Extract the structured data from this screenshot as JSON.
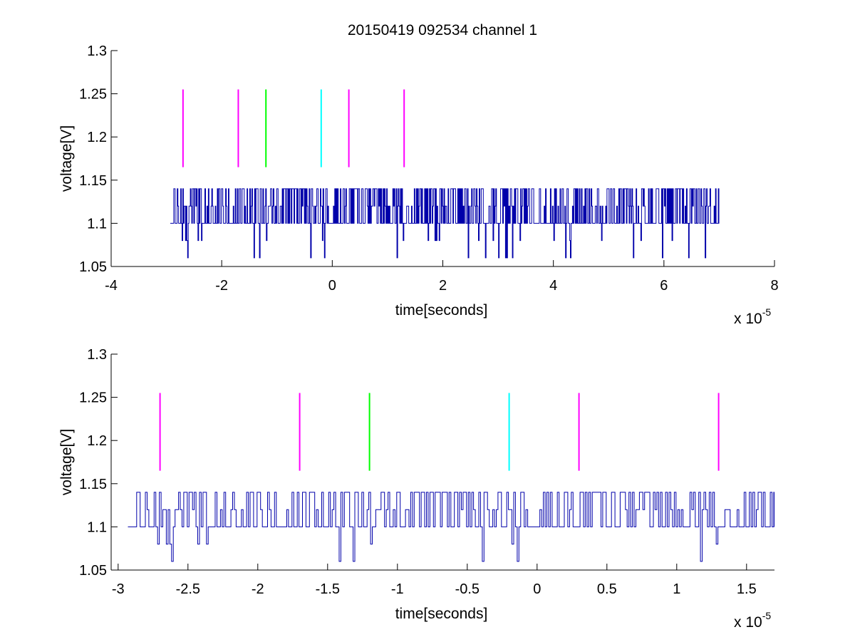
{
  "figure": {
    "title": "20150419 092534 channel 1",
    "background": "#ffffff"
  },
  "chart_data": [
    {
      "type": "line",
      "xlabel": "time[seconds]",
      "ylabel": "voltage[V]",
      "x_exponent_label": "x 10",
      "x_exponent": "-5",
      "xlim": [
        -4,
        8
      ],
      "ylim": [
        1.05,
        1.3
      ],
      "xticks": [
        "-4",
        "-2",
        "0",
        "2",
        "4",
        "6",
        "8"
      ],
      "yticks": [
        "1.05",
        "1.1",
        "1.15",
        "1.2",
        "1.25",
        "1.3"
      ],
      "grid": false,
      "signal": {
        "color": "#0000aa",
        "x_range": [
          -2.93,
          7.0
        ],
        "baseline": 1.1,
        "high_level": 1.14,
        "mid_level": 1.12,
        "low_level": 1.06,
        "dip_level": 1.08
      },
      "markers": [
        {
          "x": -2.7,
          "y0": 1.165,
          "y1": 1.255,
          "color": "#ff00ff"
        },
        {
          "x": -1.7,
          "y0": 1.165,
          "y1": 1.255,
          "color": "#ff00ff"
        },
        {
          "x": -1.2,
          "y0": 1.165,
          "y1": 1.255,
          "color": "#00ff00"
        },
        {
          "x": -0.2,
          "y0": 1.165,
          "y1": 1.255,
          "color": "#00ffff"
        },
        {
          "x": 0.3,
          "y0": 1.165,
          "y1": 1.255,
          "color": "#ff00ff"
        },
        {
          "x": 1.3,
          "y0": 1.165,
          "y1": 1.255,
          "color": "#ff00ff"
        }
      ]
    },
    {
      "type": "line",
      "xlabel": "time[seconds]",
      "ylabel": "voltage[V]",
      "x_exponent_label": "x 10",
      "x_exponent": "-5",
      "xlim": [
        -3.05,
        1.7
      ],
      "ylim": [
        1.05,
        1.3
      ],
      "xticks": [
        "-3",
        "-2.5",
        "-2",
        "-1.5",
        "-1",
        "-0.5",
        "0",
        "0.5",
        "1",
        "1.5"
      ],
      "yticks": [
        "1.05",
        "1.1",
        "1.15",
        "1.2",
        "1.25",
        "1.3"
      ],
      "grid": false,
      "signal": {
        "color": "#0000aa",
        "x_range": [
          -2.93,
          1.7
        ],
        "baseline": 1.1,
        "high_level": 1.14,
        "mid_level": 1.12,
        "low_level": 1.06,
        "dip_level": 1.08
      },
      "markers": [
        {
          "x": -2.7,
          "y0": 1.165,
          "y1": 1.255,
          "color": "#ff00ff"
        },
        {
          "x": -1.7,
          "y0": 1.165,
          "y1": 1.255,
          "color": "#ff00ff"
        },
        {
          "x": -1.2,
          "y0": 1.165,
          "y1": 1.255,
          "color": "#00ff00"
        },
        {
          "x": -0.2,
          "y0": 1.165,
          "y1": 1.255,
          "color": "#00ffff"
        },
        {
          "x": 0.3,
          "y0": 1.165,
          "y1": 1.255,
          "color": "#ff00ff"
        },
        {
          "x": 1.3,
          "y0": 1.165,
          "y1": 1.255,
          "color": "#ff00ff"
        }
      ]
    }
  ]
}
